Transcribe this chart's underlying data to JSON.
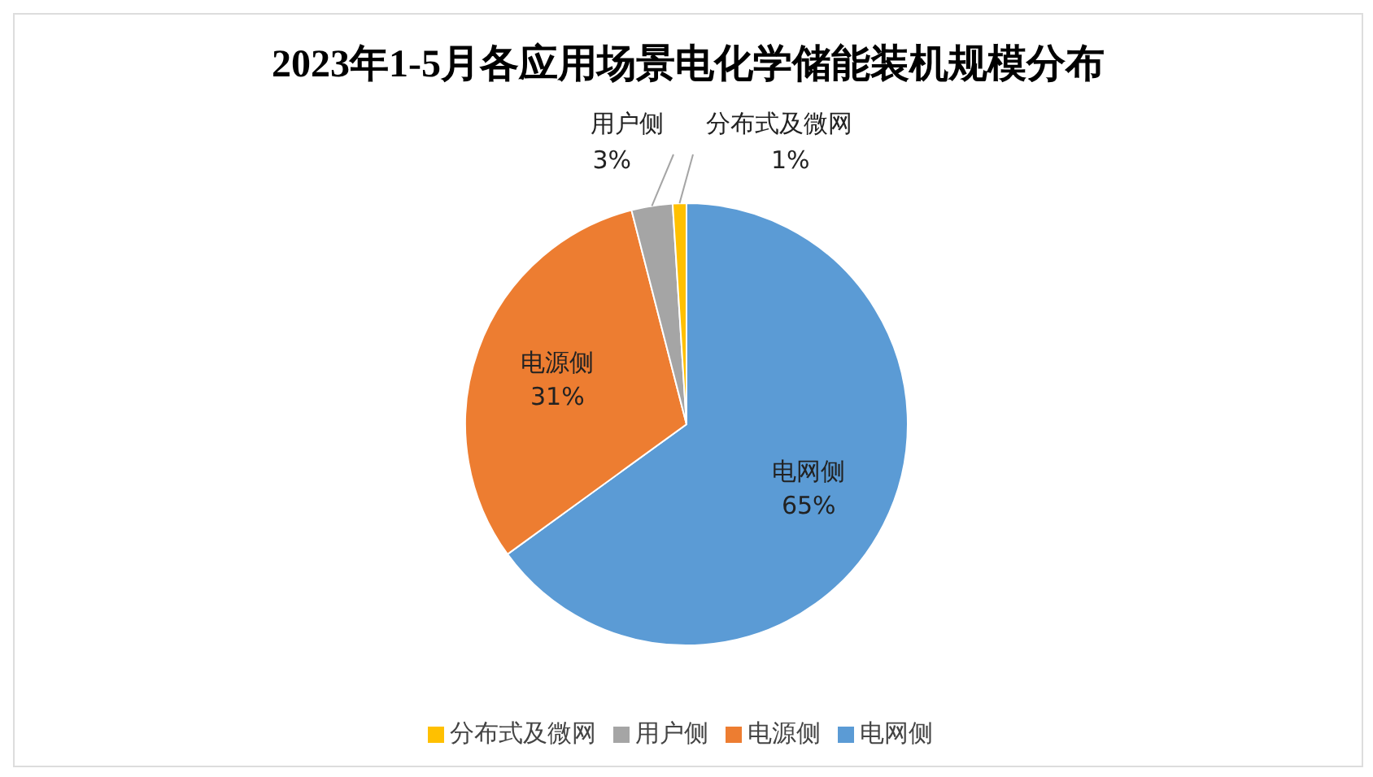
{
  "chart_data": {
    "type": "pie",
    "title": "2023年1-5月各应用场景电化学储能装机规模分布",
    "categories": [
      "电网侧",
      "电源侧",
      "用户侧",
      "分布式及微网"
    ],
    "values": [
      65,
      31,
      3,
      1
    ],
    "colors": [
      "#5b9bd5",
      "#ed7d31",
      "#a5a5a5",
      "#ffc000"
    ],
    "value_labels": [
      "65%",
      "31%",
      "3%",
      "1%"
    ],
    "legend": "bottom"
  }
}
